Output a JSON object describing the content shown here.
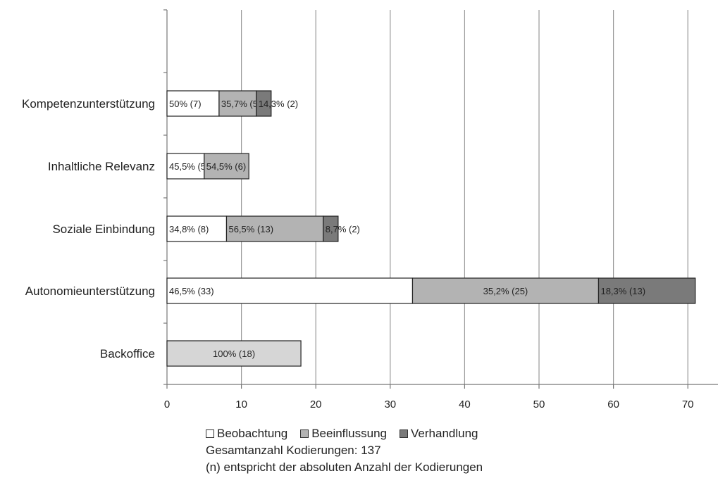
{
  "chart_data": {
    "type": "bar",
    "orientation": "horizontal",
    "stacked": true,
    "categories": [
      "Kompetenzunterstützung",
      "Inhaltliche Relevanz",
      "Soziale Einbindung",
      "Autonomieunterstützung",
      "Backoffice"
    ],
    "series": [
      {
        "name": "Beobachtung",
        "color": "#ffffff",
        "values": [
          7,
          5,
          8,
          33,
          0
        ],
        "labels": [
          "50% (7)",
          "45,5% (5)",
          "34,8% (8)",
          "46,5% (33)",
          ""
        ]
      },
      {
        "name": "Beeinflussung",
        "color": "#b3b3b3",
        "values": [
          5,
          6,
          13,
          25,
          0
        ],
        "labels": [
          "35,7% (5)",
          "54,5% (6)",
          "56,5% (13)",
          "35,2% (25)",
          ""
        ]
      },
      {
        "name": "Verhandlung",
        "color": "#7a7a7a",
        "values": [
          2,
          0,
          2,
          13,
          0
        ],
        "labels": [
          "14,3% (2)",
          "",
          "8,7% (2)",
          "18,3% (13)",
          ""
        ]
      },
      {
        "name": "",
        "color": "#d6d6d6",
        "values": [
          0,
          0,
          0,
          0,
          18
        ],
        "labels": [
          "",
          "",
          "",
          "",
          "100% (18)"
        ]
      }
    ],
    "xlim": [
      0,
      70
    ],
    "xticks": [
      0,
      10,
      20,
      30,
      40,
      50,
      60,
      70
    ],
    "grid": "vertical",
    "legend_position": "bottom"
  },
  "legend": [
    {
      "label": "Beobachtung",
      "color": "#ffffff"
    },
    {
      "label": "Beeinflussung",
      "color": "#b3b3b3"
    },
    {
      "label": "Verhandlung",
      "color": "#7a7a7a"
    }
  ],
  "notes": {
    "total": "Gesamtanzahl Kodierungen: 137",
    "explanation": "(n) entspricht der absoluten Anzahl der Kodierungen"
  }
}
